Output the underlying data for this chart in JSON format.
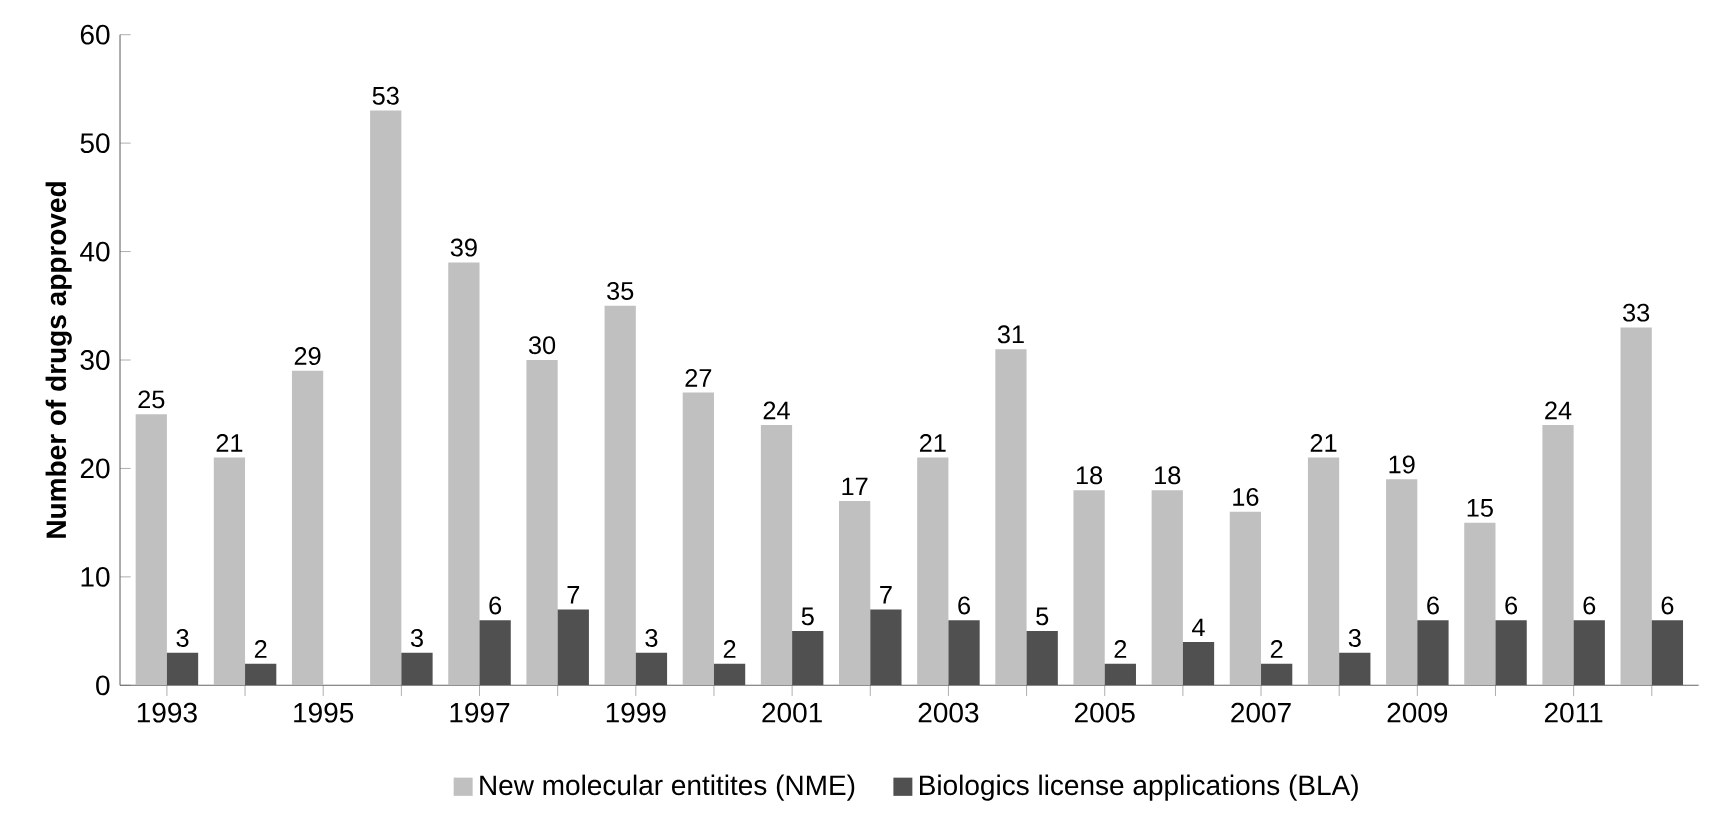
{
  "chart_data": {
    "type": "bar",
    "ylabel": "Number of drugs approved",
    "categories": [
      "1993",
      null,
      "1995",
      null,
      "1997",
      null,
      "1999",
      null,
      "2001",
      null,
      "2003",
      null,
      "2005",
      null,
      "2007",
      null,
      "2009",
      null,
      "2011",
      null
    ],
    "series": [
      {
        "name": "New molecular entitites (NME)",
        "color": "#c0c0c0",
        "values": [
          25,
          21,
          29,
          53,
          39,
          30,
          35,
          27,
          24,
          17,
          21,
          31,
          18,
          18,
          16,
          21,
          19,
          15,
          24,
          33
        ],
        "value_labels": [
          "25",
          "21",
          "29",
          "53",
          "39",
          "30",
          "35",
          "27",
          "24",
          "17",
          "21",
          "31",
          "18",
          "18",
          "16",
          "21",
          "19",
          "15",
          "24",
          "33"
        ]
      },
      {
        "name": "Biologics license applications (BLA)",
        "color": "#505050",
        "values": [
          3,
          2,
          0,
          3,
          6,
          7,
          3,
          2,
          5,
          7,
          6,
          5,
          2,
          4,
          2,
          3,
          6,
          6,
          6,
          6
        ],
        "value_labels": [
          "3",
          "2",
          null,
          "3",
          "6",
          "7",
          "3",
          "2",
          "5",
          "7",
          "6",
          "5",
          "2",
          "4",
          "2",
          "3",
          "6",
          "6",
          "6",
          "6"
        ]
      }
    ],
    "ylim": [
      0,
      60
    ],
    "yticks": [
      0,
      10,
      20,
      30,
      40,
      50,
      60
    ],
    "grid": false,
    "legend": "bottom"
  }
}
